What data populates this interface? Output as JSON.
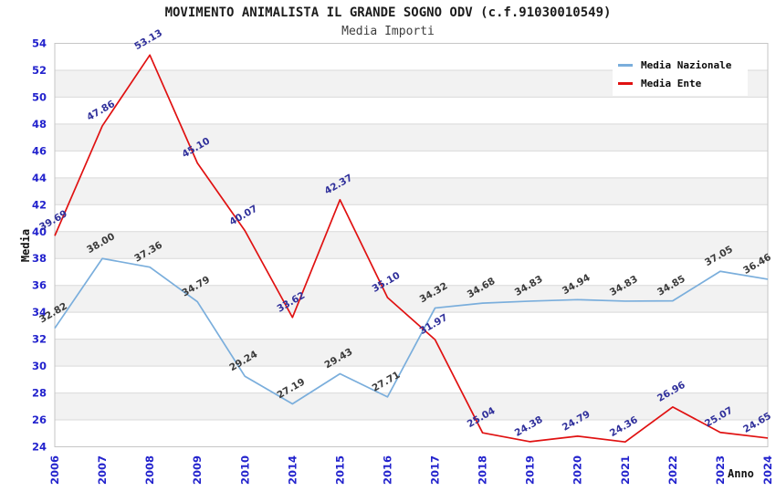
{
  "chart_data": {
    "type": "line",
    "title": "MOVIMENTO ANIMALISTA IL GRANDE SOGNO ODV (c.f.91030010549)",
    "subtitle": "Media Importi",
    "xlabel": "Anno",
    "ylabel": "Media",
    "categories": [
      "2006",
      "2007",
      "2008",
      "2009",
      "2010",
      "2014",
      "2015",
      "2016",
      "2017",
      "2018",
      "2019",
      "2020",
      "2021",
      "2022",
      "2023",
      "2024"
    ],
    "ylim": [
      24,
      54
    ],
    "ytick_step": 2,
    "grid": true,
    "band_fill": "#f2f2f2",
    "grid_color": "#d9d9d9",
    "spine_color": "#c6c6c6",
    "axis_tick_color": "#2323cd",
    "legend_position": "top-right",
    "series": [
      {
        "name": "Media Nazionale",
        "color": "#7aaedc",
        "label_color": "#3a3a3a",
        "values": [
          32.82,
          38.0,
          37.36,
          34.79,
          29.24,
          27.19,
          29.43,
          27.71,
          34.32,
          34.68,
          34.83,
          34.94,
          34.83,
          34.85,
          37.05,
          36.46
        ]
      },
      {
        "name": "Media Ente",
        "color": "#e01111",
        "label_color": "#30309b",
        "values": [
          39.69,
          47.86,
          53.13,
          45.1,
          40.07,
          33.62,
          42.37,
          35.1,
          31.97,
          25.04,
          24.38,
          24.79,
          24.36,
          26.96,
          25.07,
          24.65
        ]
      }
    ]
  }
}
